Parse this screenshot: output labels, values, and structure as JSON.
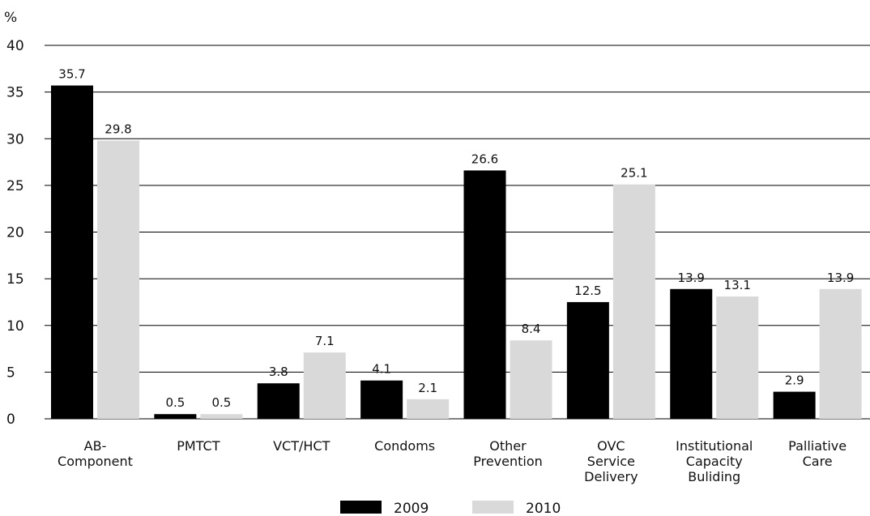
{
  "chart_data": {
    "type": "bar",
    "ylabel": "%",
    "ylim": [
      0,
      40
    ],
    "yticks": [
      0,
      5,
      10,
      15,
      20,
      25,
      30,
      35,
      40
    ],
    "grid": true,
    "legend_position": "bottom",
    "categories": [
      [
        "AB-",
        "Component"
      ],
      [
        "PMTCT"
      ],
      [
        "VCT/HCT"
      ],
      [
        "Condoms"
      ],
      [
        "Other",
        "Prevention"
      ],
      [
        "OVC",
        "Service",
        "Delivery"
      ],
      [
        "Institutional",
        "Capacity",
        "Buliding"
      ],
      [
        "Palliative",
        "Care"
      ]
    ],
    "series": [
      {
        "name": "2009",
        "color": "#000000",
        "values": [
          35.7,
          0.5,
          3.8,
          4.1,
          26.6,
          12.5,
          13.9,
          2.9
        ],
        "labels": [
          "35.7",
          "0.5",
          "3.8",
          "4.1",
          "26.6",
          "12.5",
          "13.9",
          "2.9"
        ]
      },
      {
        "name": "2010",
        "color": "#d9d9d9",
        "values": [
          29.8,
          0.5,
          7.1,
          2.1,
          8.4,
          25.1,
          13.1,
          13.9
        ],
        "labels": [
          "29.8",
          "0.5",
          "7.1",
          "2.1",
          "8.4",
          "25.1",
          "13.1",
          "13.9"
        ]
      }
    ]
  }
}
